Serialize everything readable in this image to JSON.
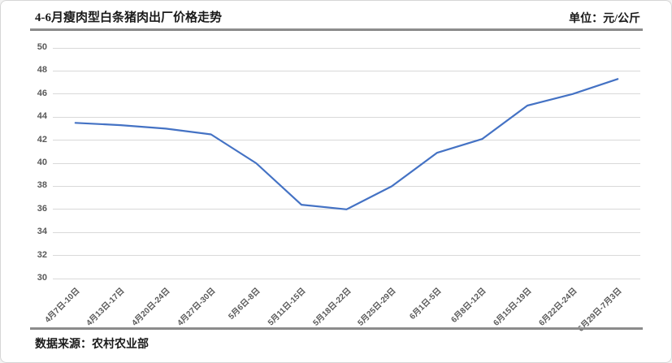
{
  "chart_data": {
    "type": "line",
    "title": "4-6月瘦肉型白条猪肉出厂价格走势",
    "unit_label": "单位：元/公斤",
    "source": "数据来源：农村农业部",
    "categories": [
      "4月7日-10日",
      "4月13日-17日",
      "4月20日-24日",
      "4月27日-30日",
      "5月6日-8日",
      "5月11日-15日",
      "5月18日-22日",
      "5月25日-29日",
      "6月1日-5日",
      "6月8日-12日",
      "6月15日-19日",
      "6月22日-24日",
      "6月29日-7月3日"
    ],
    "values": [
      43.5,
      43.3,
      43.0,
      42.5,
      40.0,
      36.4,
      36.0,
      38.0,
      40.9,
      42.1,
      45.0,
      46.0,
      47.3
    ],
    "xlabel": "",
    "ylabel": "",
    "ylim": [
      30,
      50
    ],
    "ytick_step": 2,
    "grid": true,
    "legend_position": "none",
    "line_color": "#4472C4",
    "gridline_color": "#D9D9D9",
    "tick_label_color": "#595959"
  }
}
